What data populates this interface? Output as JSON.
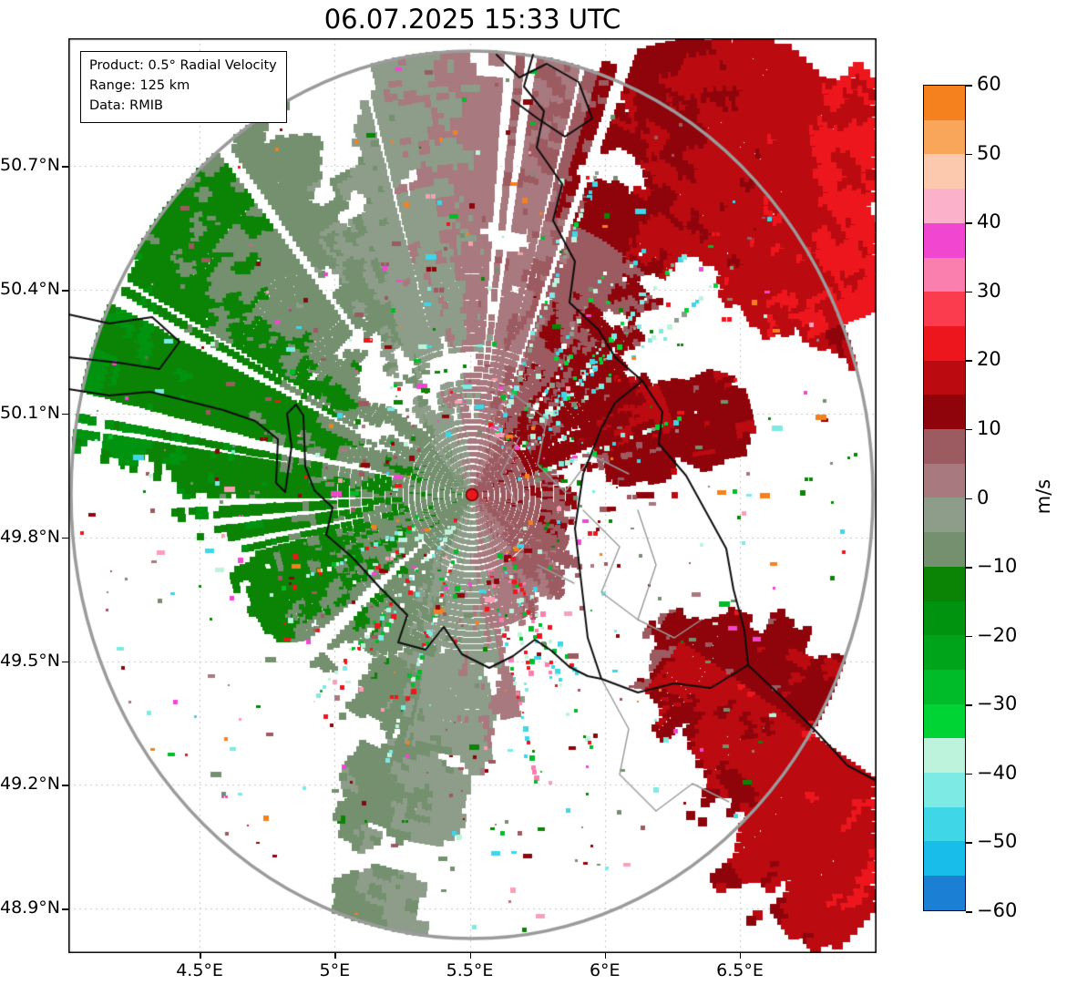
{
  "title": "06.07.2025 15:33 UTC",
  "info_box": {
    "line1": "Product: 0.5° Radial Velocity",
    "line2": "Range: 125 km",
    "line3": "Data: RMIB"
  },
  "axes": {
    "x_tick_labels": [
      "4.5°E",
      "5°E",
      "5.5°E",
      "6°E",
      "6.5°E"
    ],
    "x_tick_values": [
      4.5,
      5.0,
      5.5,
      6.0,
      6.5
    ],
    "y_tick_labels": [
      "50.7°N",
      "50.4°N",
      "50.1°N",
      "49.8°N",
      "49.5°N",
      "49.2°N",
      "48.9°N"
    ],
    "y_tick_values": [
      50.7,
      50.4,
      50.1,
      49.8,
      49.5,
      49.2,
      48.9
    ],
    "lon_min": 4.014,
    "lon_max": 7.006,
    "lat_min": 48.792,
    "lat_max": 51.01
  },
  "colorbar": {
    "unit": "m/s",
    "tick_labels": [
      "60",
      "50",
      "40",
      "30",
      "20",
      "10",
      "0",
      "−10",
      "−20",
      "−30",
      "−40",
      "−50",
      "−60"
    ],
    "tick_values": [
      60,
      50,
      40,
      30,
      20,
      10,
      0,
      -10,
      -20,
      -30,
      -40,
      -50,
      -60
    ],
    "vmin": -60,
    "vmax": 60,
    "band_step_ms": 5,
    "segment_colors_top_to_bottom": [
      "#f5811e",
      "#f9a65a",
      "#fcc9ae",
      "#fbb1c9",
      "#f147d0",
      "#fa7fae",
      "#fb3b4e",
      "#ee161d",
      "#bb0a10",
      "#8f040b",
      "#9c5a61",
      "#a8797e",
      "#8d9d89",
      "#74906f",
      "#0b8406",
      "#009310",
      "#00a41b",
      "#00bc29",
      "#00d435",
      "#bdf3dd",
      "#7deae4",
      "#3fd6e8",
      "#19bde9",
      "#1b80d4"
    ]
  },
  "radar": {
    "center_lon": 5.505,
    "center_lat": 49.914,
    "range_km": 125,
    "site_marker_color": "#e8191c",
    "range_ring_color": "#9b9b9b"
  },
  "chart_data": {
    "type": "heatmap",
    "title": "06.07.2025 15:33 UTC",
    "x_axis": {
      "unit": "°E",
      "ticks": [
        4.5,
        5.0,
        5.5,
        6.0,
        6.5
      ],
      "range": [
        4.01,
        7.01
      ]
    },
    "y_axis": {
      "unit": "°N",
      "ticks": [
        50.7,
        50.4,
        50.1,
        49.8,
        49.5,
        49.2,
        48.9
      ],
      "range": [
        48.79,
        51.01
      ]
    },
    "colorbar": {
      "label": "m/s",
      "range": [
        -60,
        60
      ],
      "tick_step": 10,
      "band_step": 5
    },
    "annotations": [
      "Product: 0.5° Radial Velocity",
      "Range: 125 km",
      "Data: RMIB"
    ],
    "radar_site": {
      "lon": 5.505,
      "lat": 49.914,
      "range_km": 125
    },
    "velocity_pattern": [
      {
        "region": "west and southwest of radar",
        "radial_velocity_ms": "-5 to -20, greens (flow toward radar)"
      },
      {
        "region": "north of radar",
        "radial_velocity_ms": "-5 to +10, gray-green / gray-mauve mix"
      },
      {
        "region": "near east-northeast of radar",
        "radial_velocity_ms": "+5 to +20, mauve and dark red"
      },
      {
        "region": "far northeast sector",
        "radial_velocity_ms": "+10 to +20, dark red wedge"
      },
      {
        "region": "far southeast sector",
        "radial_velocity_ms": "+10 to +20, dark red wedge"
      },
      {
        "region": "south of radar",
        "radial_velocity_ms": "scattered -10 to +10 patches with multicolor noise speckles"
      },
      {
        "region": "central-east (Luxembourg area)",
        "radial_velocity_ms": "mostly no data, sparse speckles"
      }
    ]
  }
}
